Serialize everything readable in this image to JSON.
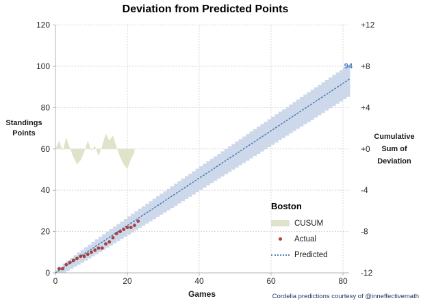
{
  "title": "Deviation from Predicted Points",
  "footer": "Cordelia predictions courtesy of @inneffectivemath",
  "axes": {
    "x_title": "Games",
    "left_title_lines": [
      "Standings",
      "Points"
    ],
    "right_title_lines": [
      "Cumulative",
      "Sum of",
      "Deviation"
    ]
  },
  "legend": {
    "title": "Boston",
    "items": [
      {
        "label": "CUSUM",
        "type": "area",
        "color": "#dee4c9"
      },
      {
        "label": "Actual",
        "type": "scatter",
        "color": "#b2413d"
      },
      {
        "label": "Predicted",
        "type": "dotted-line",
        "color": "#4a7ebb"
      }
    ]
  },
  "colors": {
    "band": "#cdd9eb",
    "predicted_line": "#4a7ebb",
    "actual_points": "#b2413d",
    "cusum_area": "#dee4c9",
    "annotation": "#4a7ebb",
    "footer_text": "#1f3864",
    "gridline": "#d4d4d4"
  },
  "chart_data": {
    "type": "combo",
    "title": "Deviation from Predicted Points",
    "xlabel": "Games",
    "xlim": [
      0,
      82
    ],
    "x_ticks": [
      0,
      20,
      40,
      60,
      80
    ],
    "grid": true,
    "left_axis": {
      "label": "Standings Points",
      "ticks": [
        0,
        20,
        40,
        60,
        80,
        100,
        120
      ],
      "lim": [
        0,
        120
      ]
    },
    "right_axis": {
      "label": "Cumulative Sum of Deviation",
      "ticks": [
        "+12",
        "+8",
        "+4",
        "+0",
        "-4",
        "-8",
        "-12"
      ],
      "tick_values": [
        12,
        8,
        4,
        0,
        -4,
        -8,
        -12
      ],
      "lim": [
        -12,
        12
      ]
    },
    "legend_position": "inside lower right",
    "series": [
      {
        "name": "CUSUM",
        "type": "area",
        "axis": "right",
        "color": "#dee4c9",
        "x": [
          0,
          1,
          2,
          3,
          4,
          5,
          6,
          7,
          8,
          9,
          10,
          11,
          12,
          13,
          14,
          15,
          16,
          17,
          18,
          19,
          20,
          21,
          22
        ],
        "values": [
          0,
          0.8,
          -0.2,
          1.1,
          0.1,
          -0.8,
          -1.5,
          -1.1,
          -0.3,
          0.8,
          -0.2,
          0.3,
          -0.7,
          0.3,
          1.5,
          0.8,
          1.3,
          0.2,
          -0.8,
          -1.5,
          -1.95,
          -1.0,
          -0.3
        ]
      },
      {
        "name": "Actual",
        "type": "scatter",
        "axis": "left",
        "color": "#b2413d",
        "x": [
          1,
          2,
          3,
          4,
          5,
          6,
          7,
          8,
          9,
          10,
          11,
          12,
          13,
          14,
          15,
          16,
          17,
          18,
          19,
          20,
          21,
          22,
          23
        ],
        "values": [
          2,
          2,
          4,
          5,
          6,
          7,
          8,
          8,
          9,
          10,
          11,
          12,
          12,
          14,
          15,
          17,
          19,
          20,
          21,
          22,
          22,
          23,
          25
        ]
      },
      {
        "name": "Predicted",
        "type": "dotted-line",
        "axis": "left",
        "color": "#4a7ebb",
        "x": [
          0,
          82
        ],
        "values": [
          0,
          94
        ],
        "band": {
          "color": "#cdd9eb",
          "base_half_width": 1.2,
          "sqrt_coeff": 0.72
        }
      }
    ],
    "annotations": [
      {
        "text": "94",
        "x": 82,
        "y": 94,
        "color": "#4a7ebb"
      }
    ]
  }
}
